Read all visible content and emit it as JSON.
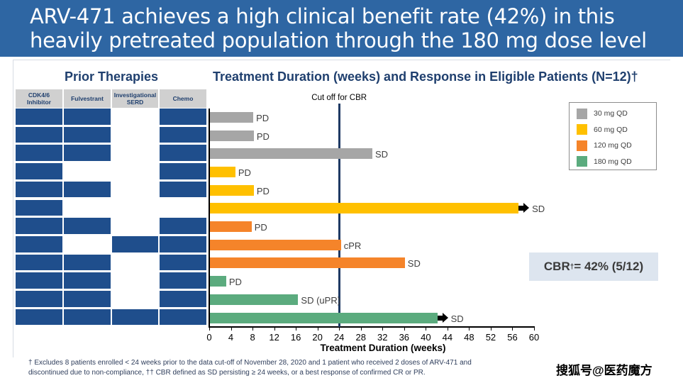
{
  "title": "ARV-471 achieves a high clinical benefit rate (42%) in this heavily pretreated population through the 180 mg dose level",
  "prior_therapies": {
    "title": "Prior Therapies",
    "columns": [
      "CDK4/6 Inhibitor",
      "Fulvestrant",
      "Investigational SERD",
      "Chemo"
    ],
    "rows": [
      [
        true,
        true,
        false,
        true
      ],
      [
        true,
        true,
        false,
        true
      ],
      [
        true,
        true,
        false,
        true
      ],
      [
        true,
        false,
        false,
        true
      ],
      [
        true,
        true,
        false,
        true
      ],
      [
        true,
        false,
        false,
        false
      ],
      [
        true,
        true,
        false,
        true
      ],
      [
        true,
        false,
        true,
        true
      ],
      [
        true,
        true,
        false,
        true
      ],
      [
        true,
        true,
        false,
        true
      ],
      [
        true,
        true,
        false,
        true
      ],
      [
        true,
        true,
        true,
        true
      ]
    ]
  },
  "chart_data": {
    "type": "bar",
    "orientation": "horizontal",
    "title": "Treatment Duration (weeks) and Response in Eligible Patients (N=12)†",
    "xlabel": "Treatment Duration (weeks)",
    "xlim": [
      0,
      60
    ],
    "xticks": [
      "0",
      "4",
      "8",
      "12",
      "16",
      "20",
      "24",
      "28",
      "32",
      "36",
      "40",
      "44",
      "48",
      "52",
      "56",
      "60"
    ],
    "cutoff": {
      "value": 24,
      "label": "Cut off for CBR"
    },
    "legend": [
      {
        "label": "30 mg QD",
        "color": "#a6a6a6"
      },
      {
        "label": "60 mg QD",
        "color": "#ffc000"
      },
      {
        "label": "120 mg QD",
        "color": "#f5842a"
      },
      {
        "label": "180 mg QD",
        "color": "#5bab7e"
      }
    ],
    "legend_position": "top-right",
    "bars": [
      {
        "dose": 0,
        "weeks": 8,
        "response": "PD",
        "ongoing": false
      },
      {
        "dose": 0,
        "weeks": 8.1,
        "response": "PD",
        "ongoing": false
      },
      {
        "dose": 0,
        "weeks": 30,
        "response": "SD",
        "ongoing": false
      },
      {
        "dose": 1,
        "weeks": 4.7,
        "response": "PD",
        "ongoing": false
      },
      {
        "dose": 1,
        "weeks": 8.1,
        "response": "PD",
        "ongoing": false
      },
      {
        "dose": 1,
        "weeks": 57,
        "response": "SD",
        "ongoing": true
      },
      {
        "dose": 2,
        "weeks": 7.7,
        "response": "PD",
        "ongoing": false
      },
      {
        "dose": 2,
        "weeks": 24.2,
        "response": "cPR",
        "ongoing": false
      },
      {
        "dose": 2,
        "weeks": 36,
        "response": "SD",
        "ongoing": false
      },
      {
        "dose": 3,
        "weeks": 3,
        "response": "PD",
        "ongoing": false
      },
      {
        "dose": 3,
        "weeks": 16.3,
        "response": "SD (uPR)",
        "ongoing": false
      },
      {
        "dose": 3,
        "weeks": 42,
        "response": "SD",
        "ongoing": true
      }
    ]
  },
  "cbr": {
    "prefix": "CBR",
    "mark": "†",
    "value": " = 42% (5/12)"
  },
  "footnote": {
    "line1": "† Excludes 8 patients enrolled < 24 weeks prior to the data cut-off of November 28, 2020 and 1 patient who received 2 doses of ARV-471 and",
    "line2": "discontinued due to non-compliance, †† CBR defined as SD persisting ≥ 24 weeks, or a best response of confirmed CR or PR."
  },
  "watermark": "搜狐号@医药魔方",
  "colors": {
    "title_band": "#2e66a3",
    "cell": "#1f4e8c",
    "cutoff": "#1f3a64"
  }
}
